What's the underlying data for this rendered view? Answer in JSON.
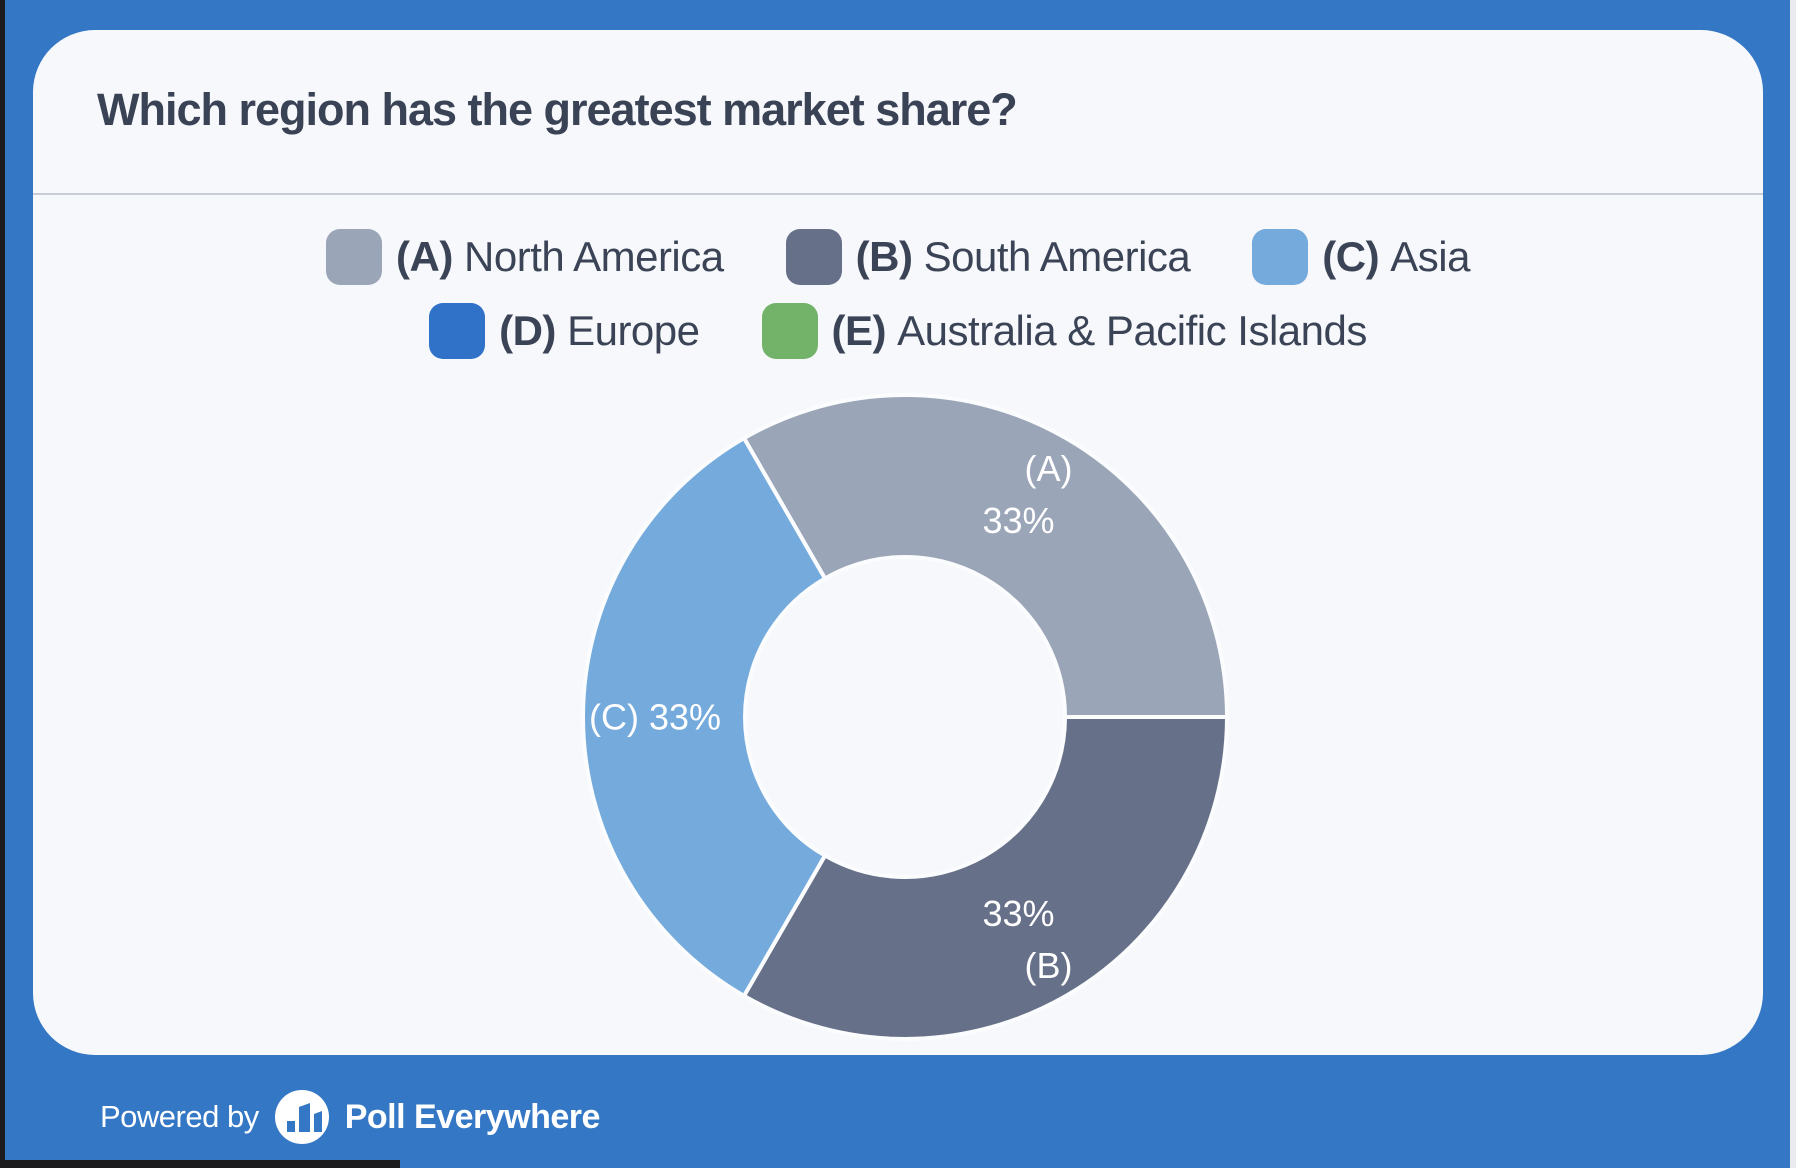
{
  "question": {
    "title": "Which region has the greatest market share?"
  },
  "legend": {
    "rows": [
      [
        {
          "key": "(A)",
          "label": "North America",
          "color": "#9ba5b8"
        },
        {
          "key": "(B)",
          "label": "South America",
          "color": "#677089"
        },
        {
          "key": "(C)",
          "label": "Asia",
          "color": "#75aadc"
        }
      ],
      [
        {
          "key": "(D)",
          "label": "Europe",
          "color": "#2f72c8"
        },
        {
          "key": "(E)",
          "label": "Australia & Pacific Islands",
          "color": "#73b269"
        }
      ]
    ]
  },
  "chart_data": {
    "type": "pie",
    "subtype": "donut",
    "title": "Which region has the greatest market share?",
    "categories": [
      "(A) North America",
      "(B) South America",
      "(C) Asia",
      "(D) Europe",
      "(E) Australia & Pacific Islands"
    ],
    "values": [
      33,
      33,
      33,
      0,
      0
    ],
    "unit": "%",
    "start_angle_deg": 120,
    "direction": "clockwise",
    "legend_position": "top",
    "segments": [
      {
        "key": "(A)",
        "pct": 33,
        "pct_label": "33%",
        "color": "#9ba5b8"
      },
      {
        "key": "(B)",
        "pct": 33,
        "pct_label": "33%",
        "color": "#677089"
      },
      {
        "key": "(C)",
        "pct": 33,
        "pct_label": "33%",
        "color": "#75aadc"
      }
    ]
  },
  "footer": {
    "powered_by": "Powered by",
    "brand": "Poll Everywhere"
  },
  "colors": {
    "background": "#3377c5",
    "card": "#f7f8fb",
    "text": "#3b4456",
    "divider": "#c7ccd6",
    "segment_label_text": "#ffffff",
    "footer_text": "#ffffff"
  }
}
